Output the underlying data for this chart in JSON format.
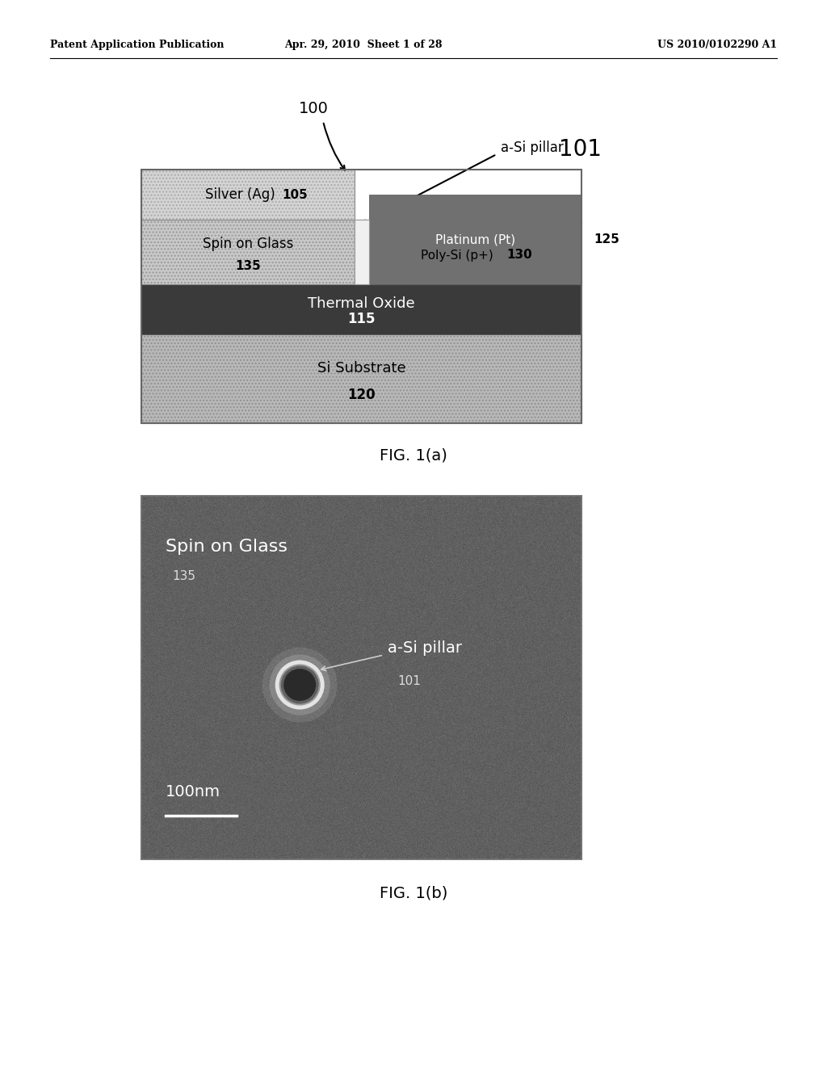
{
  "bg_color": "#ffffff",
  "header_left": "Patent Application Publication",
  "header_center": "Apr. 29, 2010  Sheet 1 of 28",
  "header_right": "US 2010/0102290 A1",
  "fig1a_label": "FIG. 1(a)",
  "fig1b_label": "FIG. 1(b)",
  "diagram_label": "100",
  "aSi_pillar_label": "a-Si pillar",
  "aSi_pillar_num": "101",
  "scale_bar_label": "100nm",
  "silver_color": "#d4d4d4",
  "sog_color": "#c8c8c8",
  "thermal_color": "#3a3a3a",
  "substrate_color": "#b8b8b8",
  "platinum_color": "#707070",
  "polysi_color": "#d0d0d0",
  "pillar_top_color": "#e8e8e8",
  "sem_bg_color": "#606060"
}
